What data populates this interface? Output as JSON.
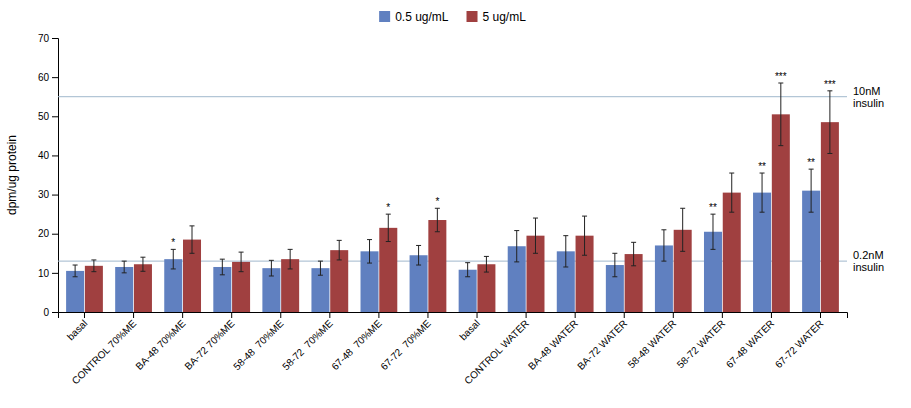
{
  "chart_data": {
    "type": "bar",
    "categories": [
      "basal",
      "CONTROL 70%ME",
      "BA-48 70%ME",
      "BA-72 70%ME",
      "58-48  70%ME",
      "58-72  70%ME",
      "67-48  70%ME",
      "67-72  70%ME",
      "basal",
      "CONTROL WATER",
      "BA-48 WATER",
      "BA-72 WATER",
      "58-48 WATER",
      "58-72 WATER",
      "67-48 WATER",
      "67-72 WATER"
    ],
    "series": [
      {
        "name": "0.5 ug/mL",
        "color": "#6080c0",
        "values": [
          10.5,
          11.5,
          13.5,
          11.5,
          11.2,
          11.2,
          15.5,
          14.5,
          10.8,
          16.8,
          15.5,
          12.0,
          17.0,
          20.5,
          30.5,
          31.0
        ],
        "errors": [
          1.5,
          1.5,
          2.5,
          2.0,
          2.0,
          1.8,
          3.0,
          2.5,
          1.8,
          4.0,
          4.0,
          3.0,
          4.0,
          4.5,
          5.0,
          5.5
        ],
        "significance": [
          null,
          null,
          "*",
          null,
          null,
          null,
          null,
          null,
          null,
          null,
          null,
          null,
          null,
          "**",
          "**",
          "**"
        ]
      },
      {
        "name": "5 ug/mL",
        "color": "#a04040",
        "values": [
          11.8,
          12.2,
          18.5,
          12.8,
          13.5,
          15.8,
          21.5,
          23.5,
          12.2,
          19.5,
          19.5,
          14.8,
          21.0,
          30.5,
          50.5,
          48.5
        ],
        "errors": [
          1.5,
          1.8,
          3.5,
          2.5,
          2.5,
          2.5,
          3.5,
          3.0,
          2.0,
          4.5,
          5.0,
          3.0,
          5.5,
          5.0,
          8.0,
          8.0
        ],
        "significance": [
          null,
          null,
          null,
          null,
          null,
          null,
          "*",
          "*",
          null,
          null,
          null,
          null,
          null,
          null,
          "***",
          "***"
        ]
      }
    ],
    "reference_lines": [
      {
        "value": 55.0,
        "label": "10nM\ninsulin",
        "color": "#a0b8cc"
      },
      {
        "value": 13.0,
        "label": "0.2nM\ninsulin",
        "color": "#a0b8cc"
      }
    ],
    "ylabel": "dpm/ug protein",
    "ylim": [
      0,
      70
    ],
    "yticks": [
      0,
      10,
      20,
      30,
      40,
      50,
      60,
      70
    ],
    "legend": "top"
  }
}
